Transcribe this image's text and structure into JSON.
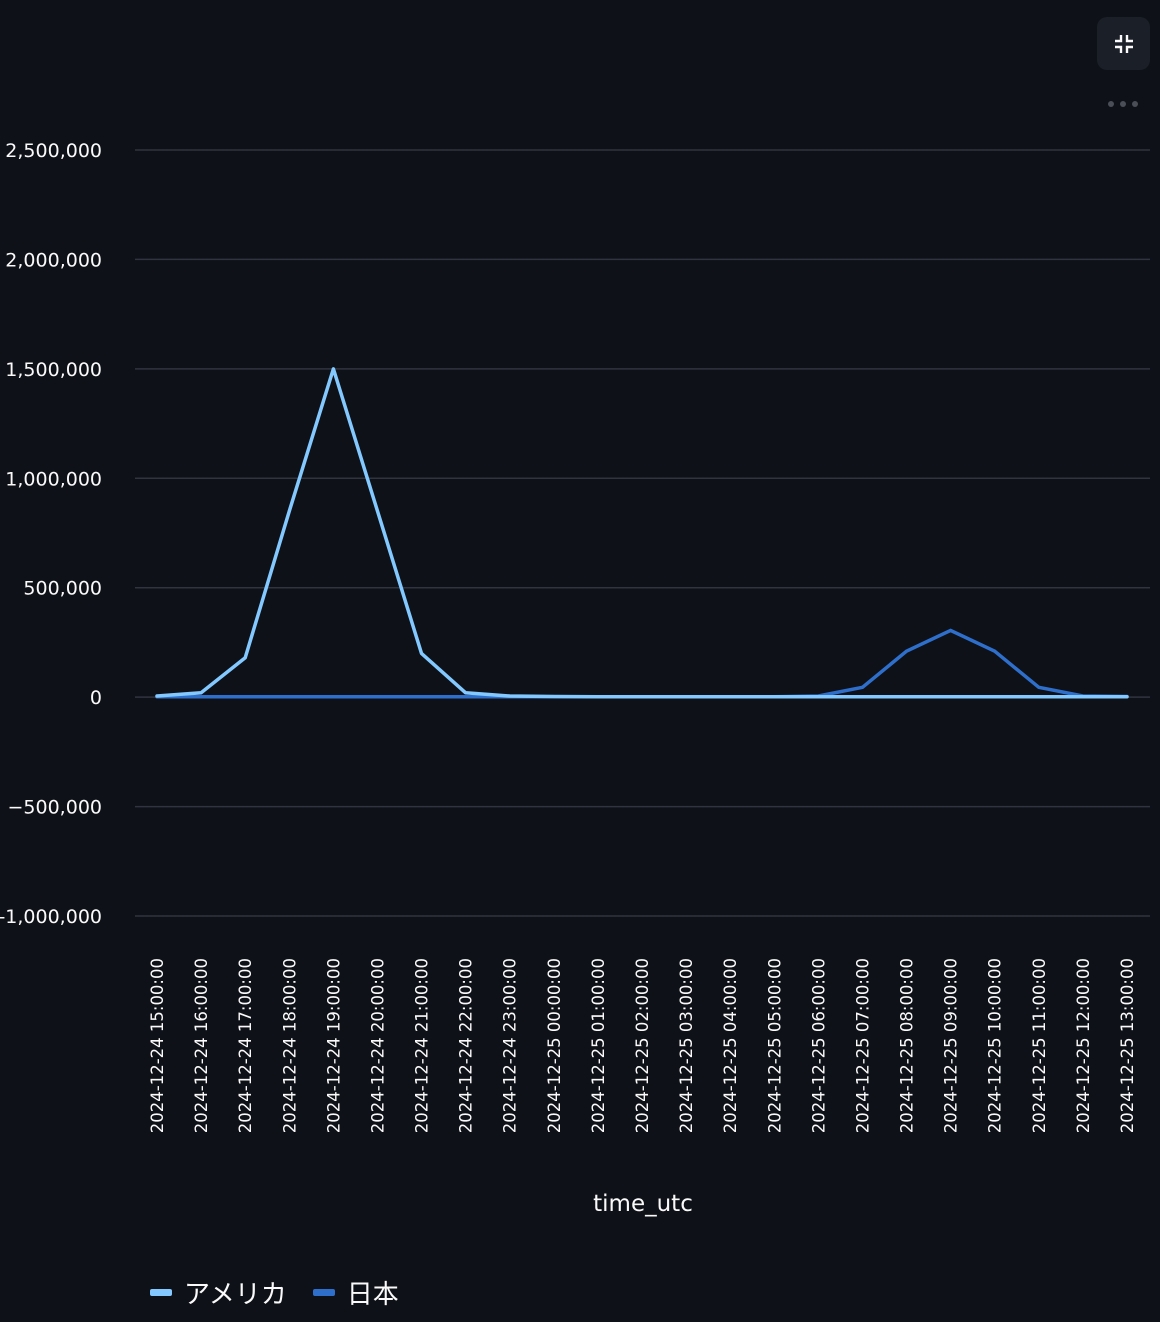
{
  "toolbar": {
    "exit_fullscreen_icon": "exit-fullscreen-icon",
    "more_icon": "more-horizontal-icon"
  },
  "colors": {
    "background": "#0e1117",
    "grid": "#31333f",
    "text": "#fafafa",
    "america": "#83c9ff",
    "japan": "#2f6fcc"
  },
  "chart_data": {
    "type": "line",
    "xlabel": "time_utc",
    "ylabel": "",
    "ylim": [
      -1000000,
      2500000
    ],
    "yticks": [
      2500000,
      2000000,
      1500000,
      1000000,
      500000,
      0,
      -500000,
      -1000000
    ],
    "ytick_labels": [
      "2,500,000",
      "2,000,000",
      "1,500,000",
      "1,000,000",
      "500,000",
      "0",
      "−500,000",
      "-1,000,000"
    ],
    "grid": true,
    "legend_position": "bottom-left",
    "x": [
      "2024-12-24 15:00:00",
      "2024-12-24 16:00:00",
      "2024-12-24 17:00:00",
      "2024-12-24 18:00:00",
      "2024-12-24 19:00:00",
      "2024-12-24 20:00:00",
      "2024-12-24 21:00:00",
      "2024-12-24 22:00:00",
      "2024-12-24 23:00:00",
      "2024-12-25 00:00:00",
      "2024-12-25 01:00:00",
      "2024-12-25 02:00:00",
      "2024-12-25 03:00:00",
      "2024-12-25 04:00:00",
      "2024-12-25 05:00:00",
      "2024-12-25 06:00:00",
      "2024-12-25 07:00:00",
      "2024-12-25 08:00:00",
      "2024-12-25 09:00:00",
      "2024-12-25 10:00:00",
      "2024-12-25 11:00:00",
      "2024-12-25 12:00:00",
      "2024-12-25 13:00:00"
    ],
    "series": [
      {
        "name": "アメリカ",
        "color": "#83c9ff",
        "values": [
          5000,
          20000,
          180000,
          850000,
          1500000,
          850000,
          200000,
          20000,
          5000,
          3000,
          2000,
          2000,
          2000,
          2000,
          2000,
          2000,
          2000,
          2000,
          2000,
          2000,
          2000,
          2000,
          2000
        ]
      },
      {
        "name": "日本",
        "color": "#2f6fcc",
        "values": [
          2000,
          2000,
          2000,
          2000,
          2000,
          2000,
          2000,
          2000,
          2000,
          2000,
          2000,
          2000,
          2000,
          2000,
          2000,
          5000,
          45000,
          210000,
          305000,
          210000,
          45000,
          5000,
          3000
        ]
      }
    ]
  }
}
